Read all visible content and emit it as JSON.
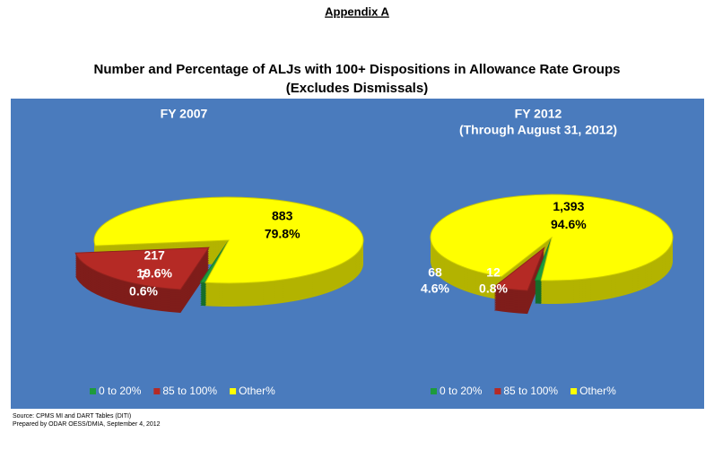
{
  "header": "Appendix A",
  "title": "Number and Percentage of ALJs with 100+ Dispositions in Allowance Rate Groups",
  "subtitle": "(Excludes Dismissals)",
  "source": "Source: CPMS MI and DART Tables (DITI)",
  "prepared": "Prepared by ODAR OESS/DMIA, September 4, 2012",
  "chart_data": [
    {
      "type": "pie",
      "title": "FY 2007",
      "categories": [
        "0 to 20%",
        "85 to 100%",
        "Other%"
      ],
      "values": [
        0.6,
        19.6,
        79.8
      ],
      "value_labels": [
        "0.6%",
        "19.6%",
        "79.8%"
      ],
      "counts": [
        7,
        217,
        883
      ],
      "colors": [
        "#1e9b3c",
        "#b52a25",
        "#ffff00"
      ],
      "exploded": [
        false,
        true,
        false
      ]
    },
    {
      "type": "pie",
      "title": "FY 2012",
      "subtitle": "(Through August 31, 2012)",
      "categories": [
        "0 to 20%",
        "85 to 100%",
        "Other%"
      ],
      "values": [
        0.8,
        4.6,
        94.6
      ],
      "value_labels": [
        "0.8%",
        "4.6%",
        "94.6%"
      ],
      "counts": [
        12,
        68,
        1393
      ],
      "count_labels": [
        "12",
        "68",
        "1,393"
      ],
      "colors": [
        "#1e9b3c",
        "#b52a25",
        "#ffff00"
      ],
      "exploded": [
        false,
        true,
        false
      ]
    }
  ]
}
